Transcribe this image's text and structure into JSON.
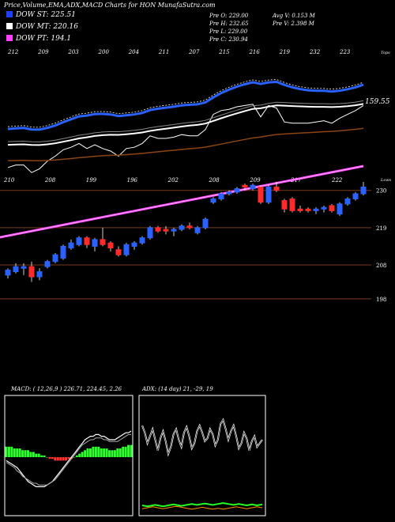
{
  "title": "Price,Volume,EMA,ADX,MACD Charts for HON  MunafaSutra.com",
  "dow": [
    {
      "label": "DOW ST: 225.51",
      "color": "#1e40ff"
    },
    {
      "label": "DOW MT: 220.16",
      "color": "#ffffff"
    },
    {
      "label": "DOW PT: 194.1",
      "color": "#ff40ff"
    }
  ],
  "ohlc": {
    "open": "Pre  O: 229.00",
    "high": "Pre  H: 232.65",
    "low": "Pre  L: 229.00",
    "close": "Pre  C: 230.94",
    "avg_volume": "Avg V: 0.153 M",
    "volume": "Pre  V: 2.398 M"
  },
  "colors": {
    "up": "#2a62ff",
    "down": "#ff2a2a",
    "ema_short": "#2a62ff",
    "ema_long": "#8b4513",
    "dow_pt": "#ff40ff"
  },
  "chart_data": [
    {
      "type": "candlestick",
      "name": "price",
      "top_labels": [
        "212",
        "209",
        "203",
        "200",
        "204",
        "211",
        "207",
        "215",
        "216",
        "219",
        "232",
        "223"
      ],
      "top_label_caption": "Tops",
      "bottom_labels": [
        "210",
        "208",
        "199",
        "196",
        "202",
        "208",
        "209",
        "217",
        "222"
      ],
      "bottom_label_caption": "Lows",
      "ema_label": "159.55",
      "y_ticks": [
        230,
        219,
        208,
        198
      ],
      "ylim": [
        194,
        236
      ],
      "candles": [
        {
          "o": 205.0,
          "h": 207.0,
          "l": 204.0,
          "c": 206.5
        },
        {
          "o": 206.0,
          "h": 208.5,
          "l": 205.5,
          "c": 207.5
        },
        {
          "o": 207.0,
          "h": 208.5,
          "l": 205.0,
          "c": 207.5
        },
        {
          "o": 207.5,
          "h": 209.0,
          "l": 203.0,
          "c": 204.5
        },
        {
          "o": 204.5,
          "h": 207.0,
          "l": 203.5,
          "c": 206.0
        },
        {
          "o": 207.5,
          "h": 209.5,
          "l": 207.0,
          "c": 209.0
        },
        {
          "o": 209.0,
          "h": 211.5,
          "l": 208.5,
          "c": 211.0
        },
        {
          "o": 210.0,
          "h": 214.0,
          "l": 209.5,
          "c": 213.5
        },
        {
          "o": 213.0,
          "h": 215.5,
          "l": 212.5,
          "c": 214.5
        },
        {
          "o": 214.0,
          "h": 216.5,
          "l": 213.5,
          "c": 216.0
        },
        {
          "o": 216.0,
          "h": 216.5,
          "l": 213.0,
          "c": 214.0
        },
        {
          "o": 213.5,
          "h": 216.0,
          "l": 212.0,
          "c": 215.5
        },
        {
          "o": 215.5,
          "h": 219.0,
          "l": 213.5,
          "c": 214.0
        },
        {
          "o": 214.5,
          "h": 215.0,
          "l": 212.0,
          "c": 213.0
        },
        {
          "o": 212.5,
          "h": 213.5,
          "l": 210.5,
          "c": 211.0
        },
        {
          "o": 211.0,
          "h": 214.5,
          "l": 210.5,
          "c": 214.0
        },
        {
          "o": 213.5,
          "h": 215.0,
          "l": 212.5,
          "c": 214.5
        },
        {
          "o": 214.5,
          "h": 216.5,
          "l": 214.0,
          "c": 216.0
        },
        {
          "o": 216.0,
          "h": 219.5,
          "l": 215.5,
          "c": 219.0
        },
        {
          "o": 219.0,
          "h": 219.5,
          "l": 217.5,
          "c": 218.0
        },
        {
          "o": 218.5,
          "h": 219.5,
          "l": 217.0,
          "c": 218.0
        },
        {
          "o": 218.0,
          "h": 219.0,
          "l": 216.5,
          "c": 218.5
        },
        {
          "o": 218.5,
          "h": 220.0,
          "l": 218.0,
          "c": 219.5
        },
        {
          "o": 219.5,
          "h": 220.5,
          "l": 218.5,
          "c": 219.0
        },
        {
          "o": 217.5,
          "h": 219.5,
          "l": 217.0,
          "c": 219.0
        },
        {
          "o": 219.0,
          "h": 222.0,
          "l": 218.5,
          "c": 221.5
        },
        {
          "o": 226.5,
          "h": 228.0,
          "l": 226.0,
          "c": 227.5
        },
        {
          "o": 227.5,
          "h": 229.5,
          "l": 227.0,
          "c": 229.0
        },
        {
          "o": 229.0,
          "h": 230.0,
          "l": 228.5,
          "c": 229.5
        },
        {
          "o": 229.5,
          "h": 231.0,
          "l": 229.0,
          "c": 230.5
        },
        {
          "o": 231.5,
          "h": 232.0,
          "l": 230.0,
          "c": 231.0
        },
        {
          "o": 230.5,
          "h": 232.0,
          "l": 230.0,
          "c": 231.5
        },
        {
          "o": 231.0,
          "h": 231.5,
          "l": 226.0,
          "c": 226.5
        },
        {
          "o": 226.5,
          "h": 231.5,
          "l": 226.0,
          "c": 231.0
        },
        {
          "o": 231.0,
          "h": 232.5,
          "l": 229.5,
          "c": 230.0
        },
        {
          "o": 227.0,
          "h": 227.5,
          "l": 223.5,
          "c": 224.5
        },
        {
          "o": 227.5,
          "h": 228.0,
          "l": 223.5,
          "c": 224.0
        },
        {
          "o": 224.5,
          "h": 225.5,
          "l": 223.5,
          "c": 224.0
        },
        {
          "o": 224.5,
          "h": 225.0,
          "l": 223.5,
          "c": 224.0
        },
        {
          "o": 224.0,
          "h": 225.0,
          "l": 223.0,
          "c": 224.5
        },
        {
          "o": 224.5,
          "h": 225.5,
          "l": 223.5,
          "c": 225.0
        },
        {
          "o": 225.5,
          "h": 226.0,
          "l": 223.5,
          "c": 224.0
        },
        {
          "o": 223.0,
          "h": 226.5,
          "l": 222.5,
          "c": 226.0
        },
        {
          "o": 226.0,
          "h": 228.0,
          "l": 225.5,
          "c": 227.5
        },
        {
          "o": 227.5,
          "h": 229.5,
          "l": 227.0,
          "c": 229.0
        },
        {
          "o": 229.0,
          "h": 232.5,
          "l": 228.5,
          "c": 231.0
        }
      ]
    },
    {
      "type": "line",
      "name": "MACD",
      "label": "MACD: ( 12,26,9 ) 226.71, 224.45, 2.26",
      "histogram": [
        6,
        6,
        6,
        5,
        5,
        5,
        4,
        4,
        4,
        3,
        3,
        2,
        2,
        1,
        1,
        0,
        -1,
        -1,
        -2,
        -2,
        -2,
        -2,
        -2,
        -1,
        -1,
        0,
        1,
        2,
        3,
        4,
        5,
        5,
        6,
        6,
        6,
        5,
        5,
        5,
        4,
        4,
        4,
        5,
        5,
        6,
        6,
        7,
        7
      ],
      "macd": [
        -2,
        -3,
        -4,
        -5,
        -6,
        -8,
        -10,
        -12,
        -14,
        -15,
        -16,
        -17,
        -17,
        -17,
        -17,
        -16,
        -15,
        -14,
        -12,
        -10,
        -8,
        -6,
        -4,
        -2,
        0,
        2,
        4,
        6,
        8,
        10,
        11,
        12,
        12,
        13,
        13,
        12,
        12,
        11,
        10,
        10,
        10,
        11,
        12,
        13,
        14,
        14,
        15
      ],
      "signal": [
        -3,
        -4,
        -5,
        -6,
        -8,
        -9,
        -11,
        -12,
        -13,
        -14,
        -15,
        -15,
        -16,
        -16,
        -16,
        -16,
        -15,
        -14,
        -13,
        -11,
        -9,
        -7,
        -5,
        -3,
        -1,
        1,
        3,
        5,
        7,
        8,
        9,
        10,
        10,
        11,
        11,
        11,
        10,
        10,
        9,
        9,
        9,
        9,
        10,
        11,
        12,
        13,
        13
      ]
    },
    {
      "type": "line",
      "name": "ADX",
      "label": "ADX: (14 day) 21,  -29,  19",
      "adx": [
        80,
        70,
        55,
        65,
        75,
        60,
        45,
        62,
        72,
        58,
        40,
        50,
        68,
        75,
        60,
        50,
        70,
        78,
        65,
        48,
        55,
        72,
        80,
        70,
        58,
        62,
        75,
        68,
        52,
        60,
        82,
        88,
        75,
        60,
        72,
        80,
        65,
        48,
        55,
        70,
        62,
        45,
        58,
        65,
        50,
        55,
        60
      ],
      "plus_di": [
        15,
        14,
        13,
        14,
        15,
        16,
        15,
        14,
        13,
        14,
        15,
        16,
        17,
        16,
        15,
        14,
        15,
        16,
        17,
        18,
        17,
        16,
        17,
        18,
        19,
        18,
        17,
        16,
        17,
        18,
        19,
        20,
        19,
        18,
        17,
        16,
        17,
        18,
        17,
        16,
        15,
        16,
        17,
        16,
        15,
        16,
        17
      ],
      "minus_di": [
        8,
        9,
        10,
        11,
        12,
        11,
        10,
        9,
        8,
        9,
        10,
        11,
        12,
        13,
        12,
        11,
        10,
        9,
        8,
        7,
        8,
        9,
        10,
        11,
        10,
        9,
        8,
        7,
        8,
        9,
        8,
        7,
        8,
        9,
        10,
        11,
        12,
        11,
        10,
        9,
        8,
        9,
        10,
        11,
        12,
        11,
        10
      ]
    }
  ]
}
